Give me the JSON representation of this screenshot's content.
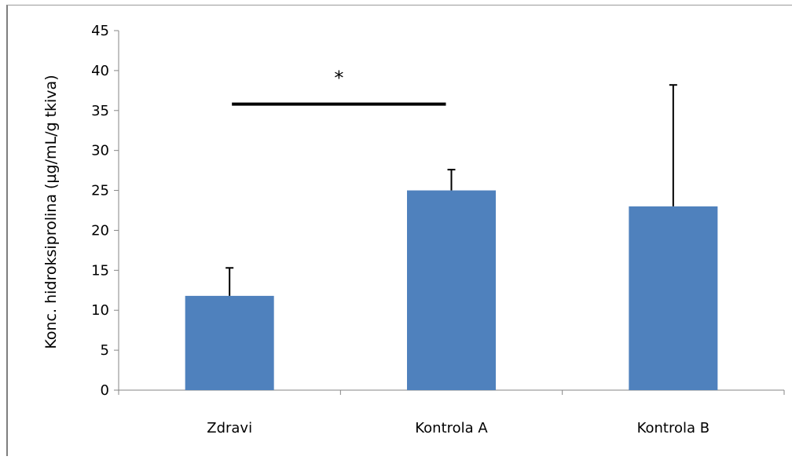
{
  "chart_data": {
    "type": "bar",
    "categories": [
      "Zdravi",
      "Kontrola A",
      "Kontrola B"
    ],
    "values": [
      11.8,
      25.0,
      23.0
    ],
    "error_bars_upper": [
      3.5,
      2.6,
      15.2
    ],
    "ylabel": "Konc. hidroksiprolina (µg/mL/g tkiva)",
    "xlabel": "",
    "ylim": [
      0,
      45
    ],
    "yticks": [
      0,
      5,
      10,
      15,
      20,
      25,
      30,
      35,
      40,
      45
    ],
    "grid": false,
    "bar_color": "#4f81bd",
    "annotations": [
      {
        "type": "significance",
        "text": "*",
        "from_category": "Zdravi",
        "to_category": "Kontrola A",
        "y": 35.8
      }
    ]
  }
}
